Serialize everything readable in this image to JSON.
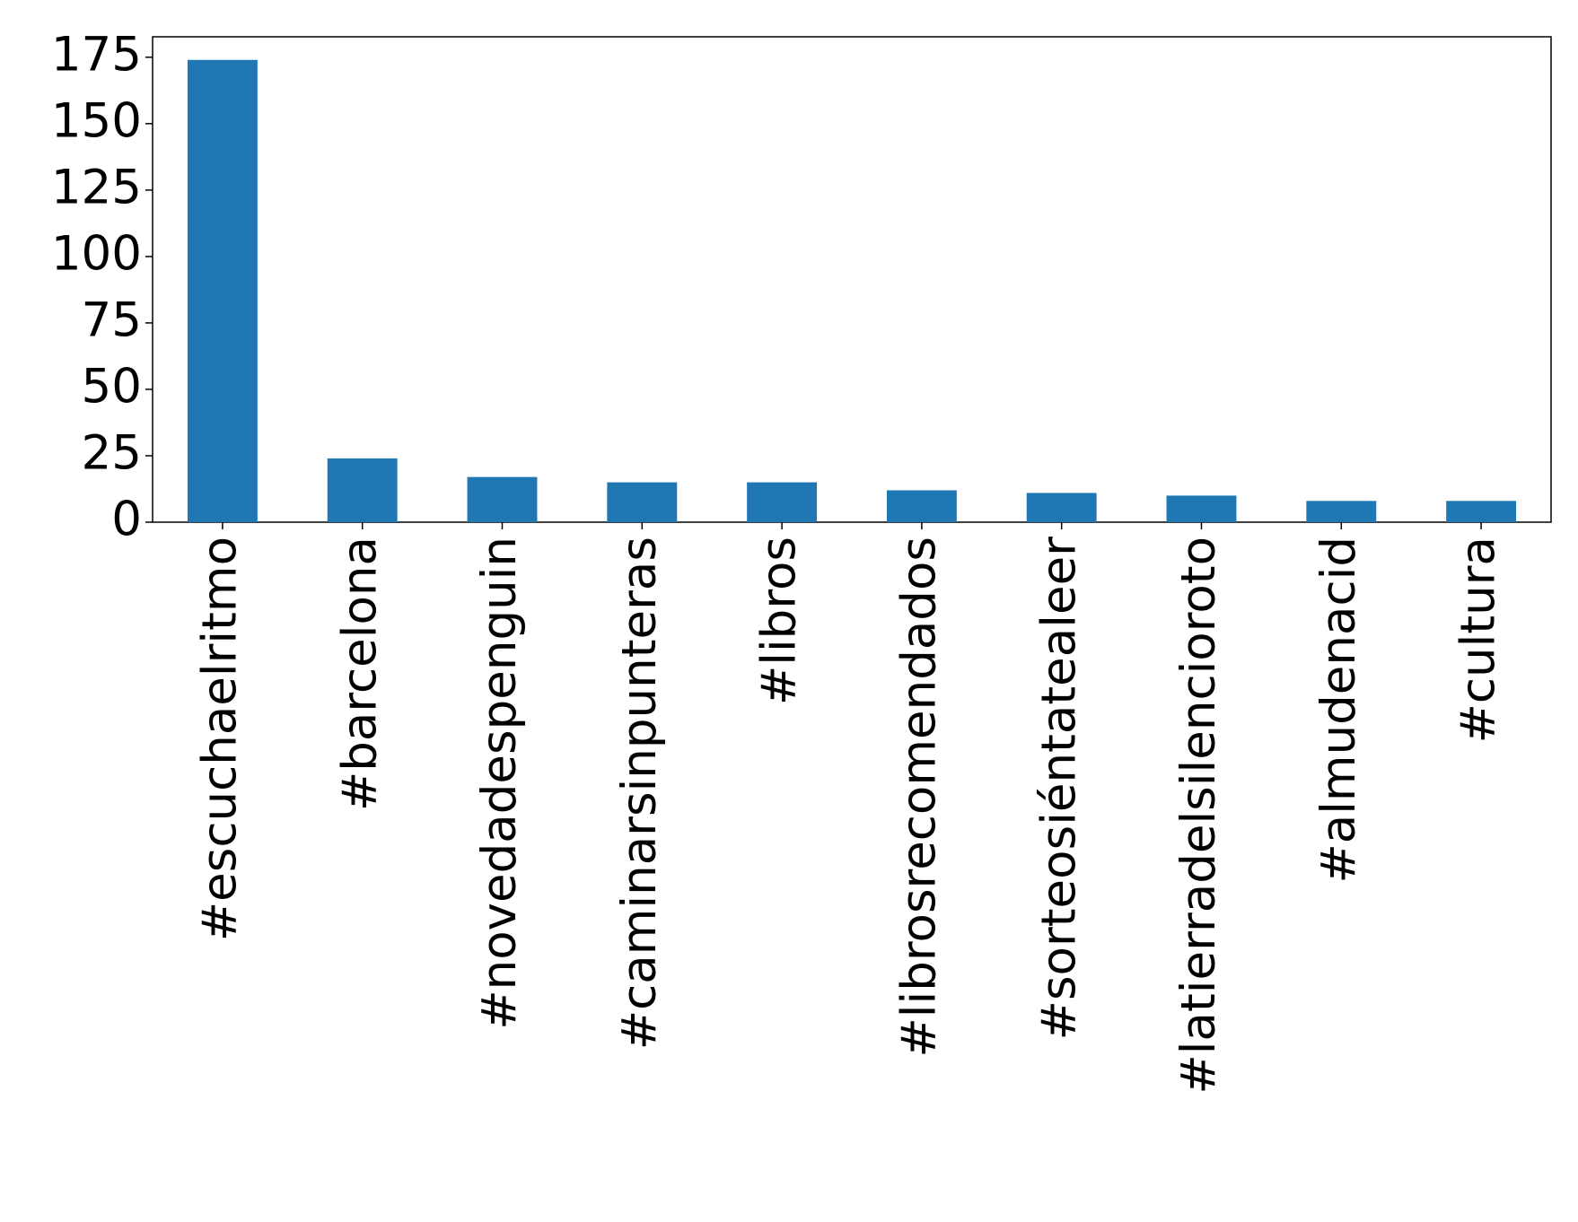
{
  "chart_data": {
    "type": "bar",
    "categories": [
      "#escuchaelritmo",
      "#barcelona",
      "#novedadespenguin",
      "#caminarsinpunteras",
      "#libros",
      "#librosrecomendados",
      "#sorteosiéntatealeer",
      "#latierradelsilencioroto",
      "#almudenacid",
      "#cultura"
    ],
    "values": [
      174,
      24,
      17,
      15,
      15,
      12,
      11,
      10,
      8,
      8
    ],
    "color": "#1f77b4",
    "ylim": [
      0,
      182.7
    ],
    "yticks": [
      0,
      25,
      50,
      75,
      100,
      125,
      150,
      175
    ],
    "grid": false
  }
}
